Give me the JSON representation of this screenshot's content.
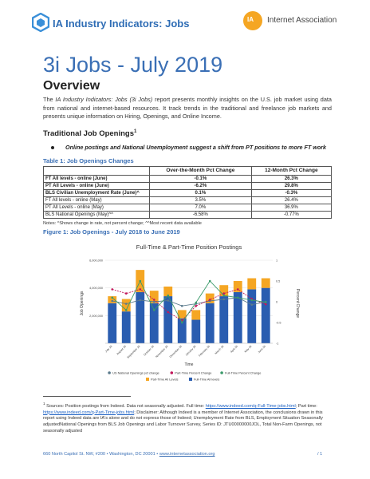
{
  "header": {
    "left_logo_text": "IA Industry Indicators: Jobs",
    "right_logo_mark": "IA",
    "right_logo_text": "Internet Association"
  },
  "title": "3i Jobs - July 2019",
  "overview_heading": "Overview",
  "intro": {
    "pre": "The ",
    "italic": "IA Industry Indicators: Jobs (3i Jobs)",
    "post": " report presents monthly insights on the U.S. job market using data from national and internet-based resources. It track trends in the traditional and freelance job markets and presents unique information on Hiring, Openings, and Online Income."
  },
  "section_heading": "Traditional Job Openings",
  "section_footnote_mark": "1",
  "bullet": "Online postings and National Unemployment suggest a shift from PT positions to more FT work",
  "table_title": "Table 1: Job Openings Changes",
  "table": {
    "headers": [
      "",
      "Over-the-Month Pct Change",
      "12-Month Pct Change"
    ],
    "rows": [
      {
        "label": "FT All levels - online (June)",
        "mom": "-0.1%",
        "yoy": "26.3%"
      },
      {
        "label": "PT All Levels - online (June)",
        "mom": "-6.2%",
        "yoy": "29.8%"
      },
      {
        "label": "BLS Civilian Unemployment Rate (June)^",
        "mom": "0.1%",
        "yoy": "-0.3%"
      },
      {
        "label": "FT All levels - online (May)",
        "mom": "3.5%",
        "yoy": "26.4%"
      },
      {
        "label": "PT All Levels - online (May)",
        "mom": "7.0%",
        "yoy": "36.9%"
      },
      {
        "label": "BLS National Openings (May)^^",
        "mom": "-6.58%",
        "yoy": "-0.77%"
      }
    ],
    "notes": "Notes: ^Shows change in rate, not percent change; ^^Most recent data available"
  },
  "figure_title": "Figure 1: Job Openings - July 2018 to June 2019",
  "chart_data": {
    "type": "bar",
    "title": "Full-Time & Part-Time Position Postings",
    "xlabel": "Time",
    "ylabel": "Job Openings",
    "y2label": "Percent Change",
    "categories": [
      "July 18",
      "August 18",
      "September 18",
      "October 18",
      "November 18",
      "December 18",
      "January 19",
      "February 19",
      "March 19",
      "April 19",
      "May 19",
      "June 19"
    ],
    "y_ticks": [
      "",
      "2,000,000",
      "4,000,000",
      "6,000,000"
    ],
    "y2_ticks": [
      "-1",
      "-0.5",
      "0",
      "0.5",
      "1"
    ],
    "ylim": [
      0,
      6000000
    ],
    "y2lim": [
      -1,
      1
    ],
    "series": [
      {
        "name": "Full-Time All levels",
        "kind": "bar-stack",
        "color": "#2a5db0",
        "values": [
          2900000,
          2300000,
          3700000,
          2900000,
          3400000,
          1800000,
          1700000,
          2900000,
          3400000,
          3700000,
          3900000,
          4000000
        ]
      },
      {
        "name": "Part-Time All Levels",
        "kind": "bar-stack",
        "color": "#f5a623",
        "values": [
          500000,
          900000,
          1600000,
          900000,
          700000,
          600000,
          700000,
          700000,
          800000,
          800000,
          800000,
          700000
        ]
      },
      {
        "name": "US National Openings pct change",
        "kind": "line-right",
        "color": "#5a7a8c",
        "values": [
          0.02,
          -0.05,
          0.04,
          0.0,
          0.03,
          -0.1,
          -0.05,
          0.02,
          0.06,
          0.1,
          -0.07,
          0.0
        ]
      },
      {
        "name": "Part-Time Percent Change",
        "kind": "line-right",
        "color": "#c2185b",
        "values": [
          0.3,
          0.2,
          0.3,
          0.05,
          -0.25,
          -0.45,
          -0.1,
          0.05,
          0.2,
          0.3,
          0.07,
          -0.06
        ]
      },
      {
        "name": "Full-Time Percent Change",
        "kind": "line-right",
        "color": "#3a9a6a",
        "values": [
          0.1,
          -0.2,
          0.5,
          -0.2,
          0.15,
          -0.5,
          -0.02,
          0.5,
          0.15,
          0.1,
          0.04,
          -0.01
        ]
      }
    ],
    "legend": [
      "US National Openings pct change",
      "Part-Time Percent Change",
      "Full-Time Percent Change",
      "Part-Time All Levels",
      "Full-Time All levels"
    ],
    "legend_position": "bottom"
  },
  "footnote": {
    "mark": "1",
    "part1": "Sources: Position postings from Indeed. Data not seasonally adjusted. Full time: ",
    "link1": "https://www.indeed.com/q-Full-Time-jobs.html",
    "part2": "; Part time: ",
    "link2": "https://www.indeed.com/q-Part-Time-jobs.html",
    "part3": "; Disclaimer: Although Indeed is a member of Internet Association, the conclusions drawn in this report using Indeed data are IA's alone and do not express those of Indeed; Unemployment Rate from BLS, Employment Situation Seasonally adjustedNational Openings from BLS Job Openings and Labor Turnover Survey, Series ID: JTU00000000JOL, Total Non-Farm Openings, not seasonally adjusted"
  },
  "footer": {
    "address": "660 North Capitol St. NW, #200  •  Washington, DC 20001  •  ",
    "link": "www.internetassociation.org",
    "page": "/  1"
  },
  "colors": {
    "accent_blue": "#3a6fb5",
    "orange": "#f5a623",
    "bar_blue": "#2a5db0"
  }
}
